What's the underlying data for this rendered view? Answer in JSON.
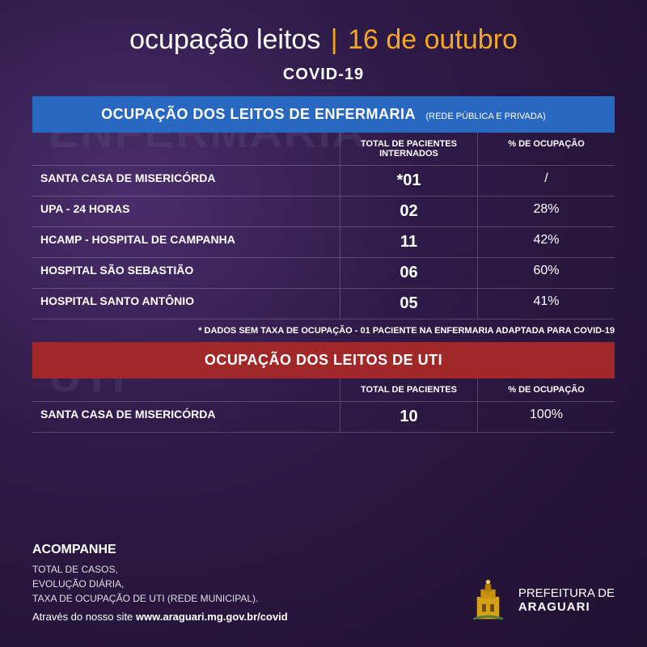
{
  "header": {
    "title_main": "ocupação leitos",
    "divider": "|",
    "title_date": "16 de outubro",
    "subtitle": "COVID-19"
  },
  "watermarks": {
    "enfermaria": "ENFERMARIA",
    "uti": "UTI"
  },
  "colors": {
    "header_blue": "#2968c0",
    "header_red": "#a02828",
    "date_color": "#f5a623",
    "bg_dark": "#2e1a47"
  },
  "enfermaria": {
    "title": "OCUPAÇÃO DOS LEITOS DE ENFERMARIA",
    "subtitle": "(REDE PÚBLICA E PRIVADA)",
    "col_patients": "TOTAL DE PACIENTES INTERNADOS",
    "col_occupancy": "% DE OCUPAÇÃO",
    "rows": [
      {
        "name": "SANTA CASA DE MISERICÓRDA",
        "patients": "*01",
        "occupancy": "/"
      },
      {
        "name": "UPA - 24 HORAS",
        "patients": "02",
        "occupancy": "28%"
      },
      {
        "name": "HCAMP - HOSPITAL DE CAMPANHA",
        "patients": "11",
        "occupancy": "42%"
      },
      {
        "name": "HOSPITAL SÃO SEBASTIÃO",
        "patients": "06",
        "occupancy": "60%"
      },
      {
        "name": "HOSPITAL SANTO ANTÔNIO",
        "patients": "05",
        "occupancy": "41%"
      }
    ],
    "footnote": "* DADOS SEM TAXA DE OCUPAÇÃO - 01 PACIENTE NA ENFERMARIA ADAPTADA PARA COVID-19"
  },
  "uti": {
    "title": "OCUPAÇÃO DOS LEITOS DE UTI",
    "col_patients": "TOTAL DE PACIENTES",
    "col_occupancy": "% DE OCUPAÇÃO",
    "rows": [
      {
        "name": "SANTA CASA DE MISERICÓRDA",
        "patients": "10",
        "occupancy": "100%"
      }
    ]
  },
  "footer": {
    "title": "ACOMPANHE",
    "line1": "TOTAL DE CASOS,",
    "line2": "EVOLUÇÃO DIÁRIA,",
    "line3": "TAXA DE OCUPAÇÃO DE UTI (REDE MUNICIPAL).",
    "site_prefix": "Através do nosso site ",
    "site_url": "www.araguari.mg.gov.br/covid",
    "logo_top": "PREFEITURA DE",
    "logo_bottom": "ARAGUARI"
  }
}
